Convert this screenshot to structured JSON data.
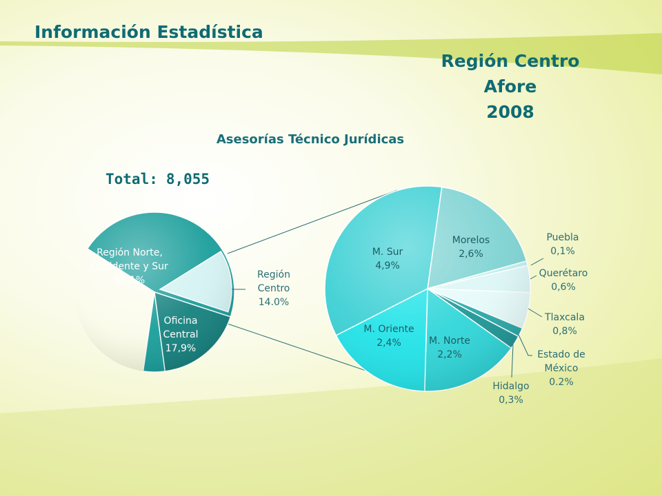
{
  "page": {
    "title": "Información Estadística",
    "region_heading": [
      "Región Centro",
      "Afore",
      "2008"
    ],
    "total_label": "Total:",
    "total_value": "8,055",
    "colors": {
      "heading": "#0f6b73",
      "main_teal": "#1a9e9b",
      "detail_cyan": "#2fd9dc"
    }
  },
  "chart_data": [
    {
      "type": "pie",
      "title": "Asesorías Técnico Jurídicas",
      "slices": [
        {
          "name": "Región Norte, Occidente y Sur",
          "label_lines": [
            "Región Norte,",
            "Occidente y Sur",
            "68,1%"
          ],
          "value": 68.1,
          "color": "#1a9e9b"
        },
        {
          "name": "Región Centro",
          "label_lines": [
            "Región",
            "Centro",
            "14.0%"
          ],
          "value": 14.0,
          "color": "#d4f2f2",
          "exploded": true
        },
        {
          "name": "Oficina Central",
          "label_lines": [
            "Oficina",
            "Central",
            "17,9%"
          ],
          "value": 17.9,
          "color": "#16827f"
        }
      ]
    },
    {
      "type": "pie",
      "title": "",
      "slices": [
        {
          "name": "Morelos",
          "label_lines": [
            "Morelos",
            "2,6%"
          ],
          "value": 2.6,
          "color": "#7fd3d3"
        },
        {
          "name": "Puebla",
          "label_lines": [
            "Puebla",
            "0,1%"
          ],
          "value": 0.1,
          "color": "#bfeeee"
        },
        {
          "name": "Querétaro",
          "label_lines": [
            "Querétaro",
            "0,6%"
          ],
          "value": 0.6,
          "color": "#dcf6f6"
        },
        {
          "name": "Tlaxcala",
          "label_lines": [
            "Tlaxcala",
            "0,8%"
          ],
          "value": 0.8,
          "color": "#e6fafa"
        },
        {
          "name": "Estado de México",
          "label_lines": [
            "Estado de",
            "México",
            "0.2%"
          ],
          "value": 0.2,
          "color": "#2aa8a8"
        },
        {
          "name": "Hidalgo",
          "label_lines": [
            "Hidalgo",
            "0,3%"
          ],
          "value": 0.3,
          "color": "#1f9696"
        },
        {
          "name": "M. Norte",
          "label_lines": [
            "M. Norte",
            "2,2%"
          ],
          "value": 2.2,
          "color": "#2fd6d9"
        },
        {
          "name": "M. Oriente",
          "label_lines": [
            "M. Oriente",
            "2,4%"
          ],
          "value": 2.4,
          "color": "#22e3e8"
        },
        {
          "name": "M. Sur",
          "label_lines": [
            "M. Sur",
            "4,9%"
          ],
          "value": 4.9,
          "color": "#3cd0d4"
        }
      ]
    }
  ]
}
